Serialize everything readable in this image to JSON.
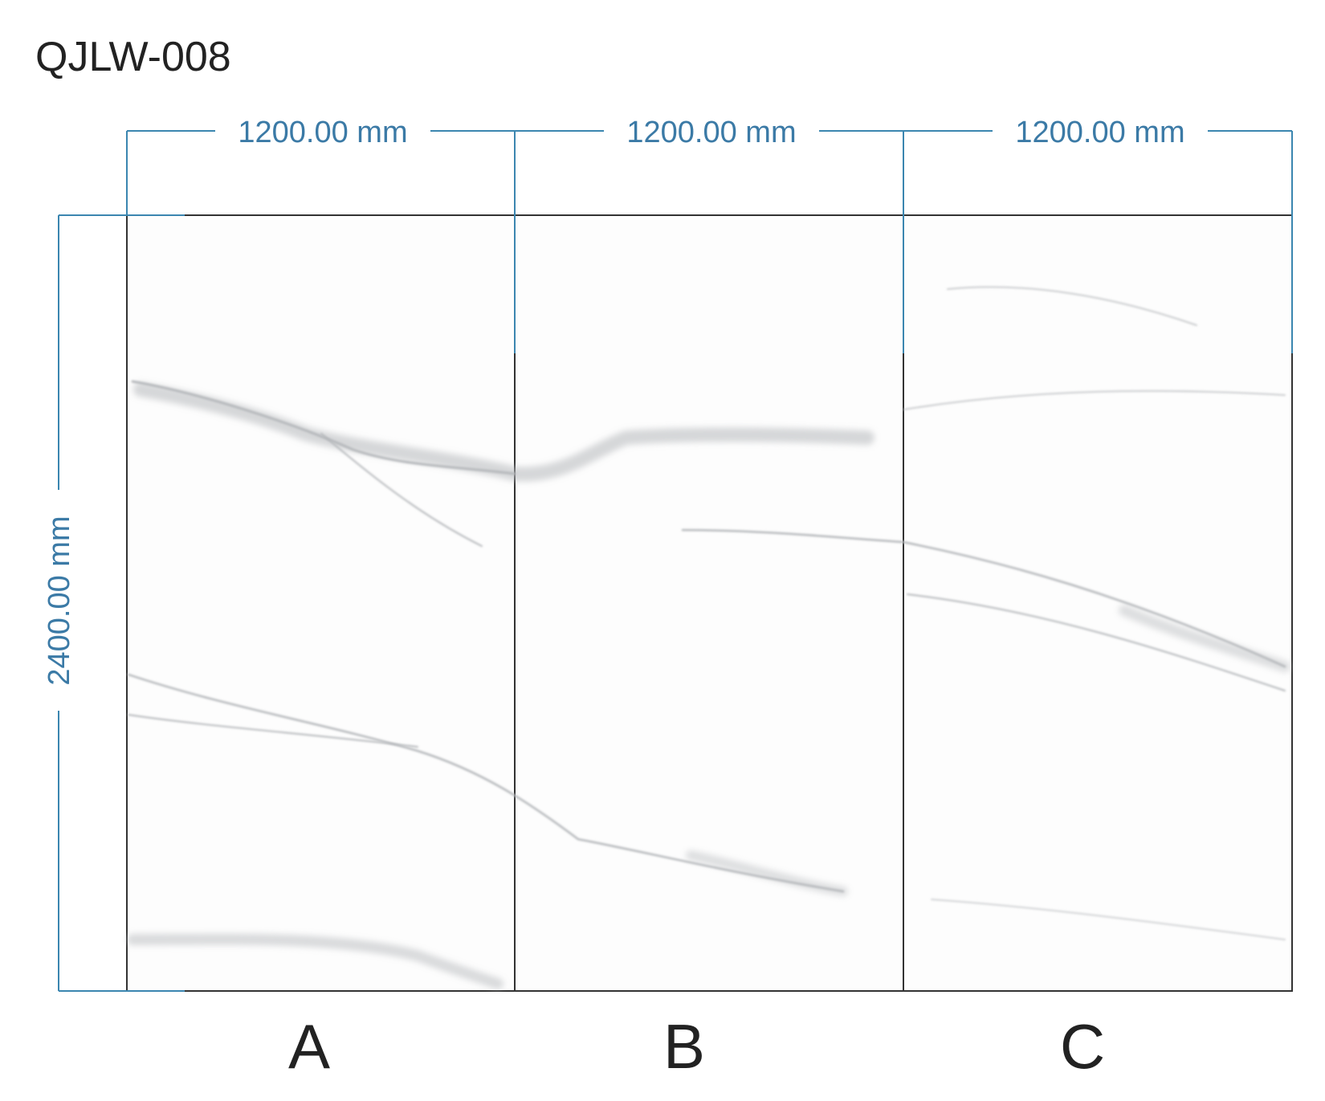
{
  "title": "QJLW-008",
  "height": "2400.00 mm",
  "panels": [
    {
      "label": "A",
      "width": "1200.00 mm"
    },
    {
      "label": "B",
      "width": "1200.00 mm"
    },
    {
      "label": "C",
      "width": "1200.00 mm"
    }
  ]
}
